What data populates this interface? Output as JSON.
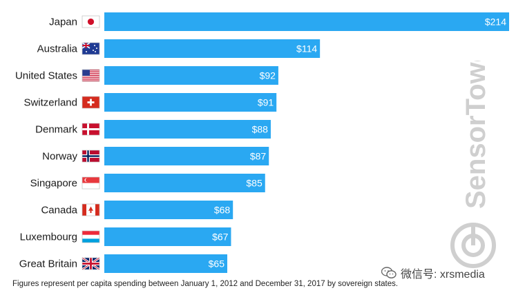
{
  "chart_data": {
    "type": "bar",
    "orientation": "horizontal",
    "categories": [
      "Japan",
      "Australia",
      "United States",
      "Switzerland",
      "Denmark",
      "Norway",
      "Singapore",
      "Canada",
      "Luxembourg",
      "Great Britain"
    ],
    "values": [
      214,
      114,
      92,
      91,
      88,
      87,
      85,
      68,
      67,
      65
    ],
    "value_labels": [
      "$214",
      "$114",
      "$92",
      "$91",
      "$88",
      "$87",
      "$85",
      "$68",
      "$67",
      "$65"
    ],
    "flag_icons": [
      "japan-flag-icon",
      "australia-flag-icon",
      "united-states-flag-icon",
      "switzerland-flag-icon",
      "denmark-flag-icon",
      "norway-flag-icon",
      "singapore-flag-icon",
      "canada-flag-icon",
      "luxembourg-flag-icon",
      "great-britain-flag-icon"
    ],
    "bar_color": "#2aa8f2",
    "xlim": [
      0,
      214
    ],
    "grid": false,
    "legend": "none"
  },
  "footnote": "Figures represent per capita spending between January 1, 2012 and December 31, 2017 by sovereign states.",
  "watermark": {
    "brand": "SensorTower",
    "color": "#cfcfcf"
  },
  "wechat": {
    "label": "微信号: xrsmedia",
    "icon": "wechat-icon"
  }
}
